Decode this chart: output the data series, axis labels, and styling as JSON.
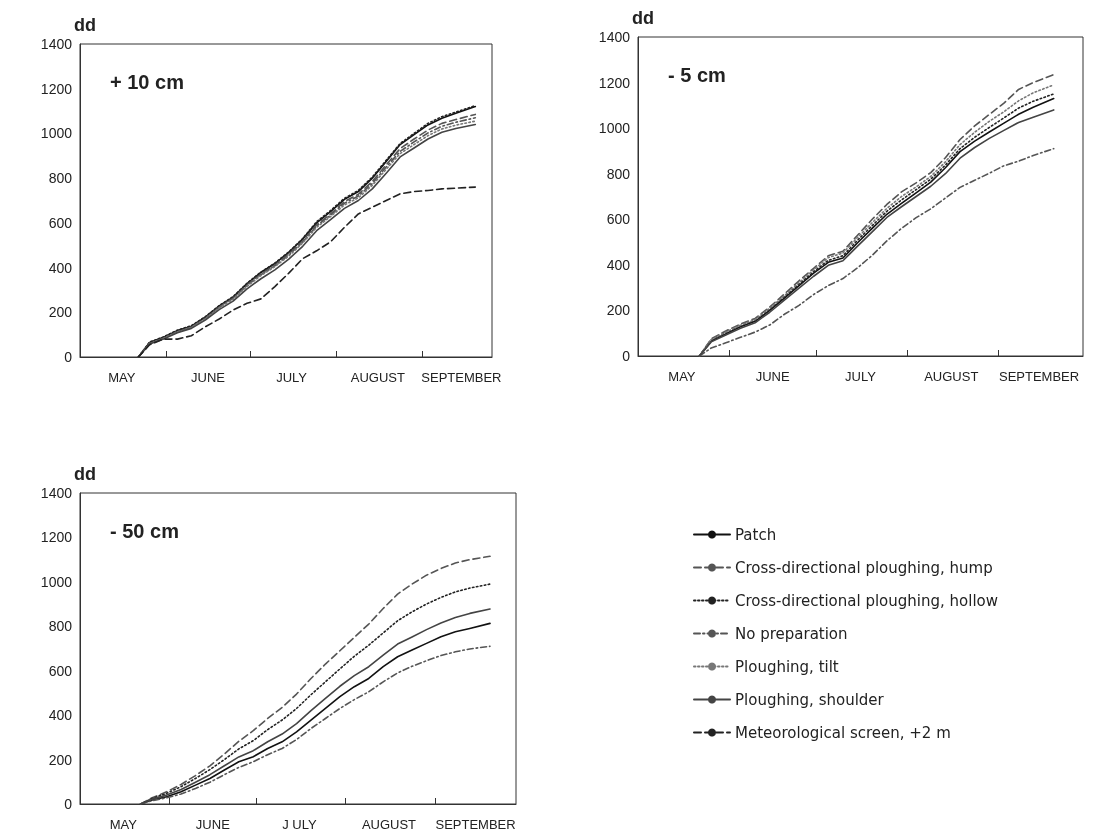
{
  "chart_data": [
    {
      "type": "line",
      "ylabel": "dd",
      "annotations": [
        "+ 10 cm"
      ],
      "xlim": [
        "--05-01",
        "--09-26"
      ],
      "ylim": [
        0,
        1400
      ],
      "yticks": [
        0,
        200,
        400,
        600,
        800,
        1000,
        1200,
        1400
      ],
      "xticks": [
        {
          "value": "--05-16",
          "label": "MAY"
        },
        {
          "value": "--06-01",
          "label": null
        },
        {
          "value": "--06-16",
          "label": "JUNE"
        },
        {
          "value": "--07-01",
          "label": null
        },
        {
          "value": "--07-16",
          "label": "JULY"
        },
        {
          "value": "--08-01",
          "label": null
        },
        {
          "value": "--08-16",
          "label": "AUGUST"
        },
        {
          "value": "--09-01",
          "label": null
        },
        {
          "value": "--09-15",
          "label": "SEPTEMBER"
        }
      ],
      "x": [
        "--05-22",
        "--05-26",
        "--05-31",
        "--06-05",
        "--06-10",
        "--06-15",
        "--06-20",
        "--06-25",
        "--06-30",
        "--07-05",
        "--07-10",
        "--07-15",
        "--07-20",
        "--07-25",
        "--07-30",
        "--08-04",
        "--08-09",
        "--08-14",
        "--08-19",
        "--08-24",
        "--08-29",
        "--09-03",
        "--09-08",
        "--09-13",
        "--09-20"
      ],
      "marker": "none",
      "legend": "bottom right",
      "series": [
        {
          "name": "Patch",
          "color": "#111111",
          "line_style": "solid",
          "values": [
            0,
            65,
            88,
            118,
            138,
            178,
            228,
            268,
            328,
            378,
            418,
            468,
            528,
            600,
            650,
            705,
            740,
            800,
            875,
            950,
            995,
            1038,
            1068,
            1090,
            1120
          ]
        },
        {
          "name": "Cross-directional ploughing, hump",
          "color": "#555555",
          "line_style": "dashed",
          "values": [
            0,
            62,
            85,
            115,
            135,
            175,
            225,
            265,
            325,
            372,
            412,
            462,
            520,
            592,
            640,
            695,
            728,
            785,
            860,
            932,
            975,
            1015,
            1045,
            1062,
            1085
          ]
        },
        {
          "name": "Cross-directional ploughing, hollow",
          "color": "#222222",
          "line_style": "dotted",
          "values": [
            0,
            67,
            90,
            120,
            140,
            180,
            230,
            270,
            330,
            380,
            420,
            470,
            530,
            605,
            655,
            710,
            745,
            805,
            880,
            955,
            1000,
            1045,
            1075,
            1095,
            1125
          ]
        },
        {
          "name": "No preparation",
          "color": "#555555",
          "line_style": "dashdot",
          "values": [
            0,
            60,
            84,
            113,
            133,
            172,
            222,
            262,
            320,
            368,
            408,
            456,
            515,
            586,
            634,
            688,
            720,
            776,
            850,
            920,
            962,
            1002,
            1032,
            1050,
            1070
          ]
        },
        {
          "name": "Ploughing, tilt",
          "color": "#777777",
          "line_style": "dotted",
          "values": [
            0,
            60,
            83,
            112,
            132,
            170,
            220,
            258,
            316,
            364,
            404,
            452,
            510,
            580,
            628,
            680,
            712,
            768,
            840,
            910,
            950,
            990,
            1020,
            1037,
            1055
          ]
        },
        {
          "name": "Ploughing, shoulder",
          "color": "#444444",
          "line_style": "solid",
          "values": [
            0,
            58,
            80,
            108,
            128,
            165,
            212,
            250,
            305,
            350,
            390,
            438,
            495,
            565,
            615,
            665,
            700,
            752,
            822,
            895,
            935,
            975,
            1005,
            1022,
            1040
          ]
        },
        {
          "name": "Meteorological screen, +2 m",
          "color": "#222222",
          "line_style": "dashed",
          "values": [
            0,
            55,
            80,
            80,
            95,
            135,
            170,
            210,
            240,
            260,
            315,
            375,
            440,
            475,
            515,
            580,
            640,
            670,
            700,
            730,
            740,
            745,
            752,
            755,
            760
          ]
        }
      ]
    },
    {
      "type": "line",
      "ylabel": "dd",
      "annotations": [
        "- 5 cm"
      ],
      "xlim": [
        "--05-01",
        "--09-30"
      ],
      "ylim": [
        0,
        1400
      ],
      "yticks": [
        0,
        200,
        400,
        600,
        800,
        1000,
        1200,
        1400
      ],
      "xticks": [
        {
          "value": "--05-16",
          "label": "MAY"
        },
        {
          "value": "--06-01",
          "label": null
        },
        {
          "value": "--06-16",
          "label": "JUNE"
        },
        {
          "value": "--07-01",
          "label": null
        },
        {
          "value": "--07-16",
          "label": "JULY"
        },
        {
          "value": "--08-01",
          "label": null
        },
        {
          "value": "--08-16",
          "label": "AUGUST"
        },
        {
          "value": "--09-01",
          "label": null
        },
        {
          "value": "--09-15",
          "label": "SEPTEMBER"
        }
      ],
      "x": [
        "--05-22",
        "--05-26",
        "--05-31",
        "--06-05",
        "--06-10",
        "--06-15",
        "--06-20",
        "--06-25",
        "--06-30",
        "--07-05",
        "--07-10",
        "--07-15",
        "--07-20",
        "--07-25",
        "--07-30",
        "--08-04",
        "--08-09",
        "--08-14",
        "--08-19",
        "--08-24",
        "--08-29",
        "--09-03",
        "--09-08",
        "--09-13",
        "--09-20"
      ],
      "marker": "none",
      "series": [
        {
          "color": "#111111",
          "line_style": "solid",
          "values": [
            0,
            65,
            97,
            128,
            152,
            200,
            254,
            309,
            364,
            411,
            430,
            497,
            560,
            622,
            670,
            716,
            763,
            826,
            897,
            943,
            983,
            1022,
            1061,
            1092,
            1130
          ]
        },
        {
          "color": "#555555",
          "line_style": "dashed",
          "values": [
            0,
            75,
            110,
            140,
            165,
            215,
            272,
            330,
            385,
            440,
            460,
            530,
            600,
            665,
            720,
            760,
            805,
            870,
            950,
            1010,
            1060,
            1110,
            1170,
            1200,
            1235
          ]
        },
        {
          "color": "#222222",
          "line_style": "dotted",
          "values": [
            0,
            70,
            102,
            132,
            157,
            205,
            260,
            315,
            370,
            420,
            440,
            508,
            572,
            635,
            685,
            730,
            776,
            838,
            910,
            960,
            1003,
            1045,
            1088,
            1118,
            1150
          ]
        },
        {
          "color": "#555555",
          "line_style": "dashdot",
          "values": [
            0,
            35,
            58,
            82,
            105,
            136,
            183,
            222,
            270,
            309,
            340,
            387,
            442,
            505,
            560,
            607,
            646,
            693,
            740,
            771,
            802,
            835,
            855,
            880,
            910
          ]
        },
        {
          "color": "#777777",
          "line_style": "dotted",
          "values": [
            0,
            72,
            105,
            135,
            160,
            210,
            265,
            322,
            378,
            432,
            452,
            520,
            585,
            648,
            700,
            742,
            788,
            852,
            928,
            982,
            1030,
            1072,
            1120,
            1155,
            1190
          ]
        },
        {
          "color": "#444444",
          "line_style": "solid",
          "values": [
            0,
            62,
            92,
            122,
            146,
            192,
            245,
            298,
            350,
            398,
            418,
            482,
            545,
            608,
            655,
            700,
            745,
            800,
            868,
            915,
            955,
            990,
            1025,
            1048,
            1080
          ]
        }
      ]
    },
    {
      "type": "line",
      "ylabel": "dd",
      "annotations": [
        "- 50 cm"
      ],
      "xlim": [
        "--05-01",
        "--09-29"
      ],
      "ylim": [
        0,
        1400
      ],
      "yticks": [
        0,
        200,
        400,
        600,
        800,
        1000,
        1200,
        1400
      ],
      "xticks": [
        {
          "value": "--05-16",
          "label": "MAY"
        },
        {
          "value": "--06-01",
          "label": null
        },
        {
          "value": "--06-16",
          "label": "JUNE"
        },
        {
          "value": "--07-01",
          "label": null
        },
        {
          "value": "--07-16",
          "label": "J ULY"
        },
        {
          "value": "--08-01",
          "label": null
        },
        {
          "value": "--08-16",
          "label": "AUGUST"
        },
        {
          "value": "--09-01",
          "label": null
        },
        {
          "value": "--09-15",
          "label": "SEPTEMBER"
        }
      ],
      "x": [
        "--05-22",
        "--05-26",
        "--05-31",
        "--06-05",
        "--06-10",
        "--06-15",
        "--06-20",
        "--06-25",
        "--06-30",
        "--07-05",
        "--07-10",
        "--07-15",
        "--07-20",
        "--07-25",
        "--07-30",
        "--08-04",
        "--08-09",
        "--08-14",
        "--08-19",
        "--08-24",
        "--08-29",
        "--09-03",
        "--09-08",
        "--09-13",
        "--09-20"
      ],
      "marker": "none",
      "series": [
        {
          "color": "#111111",
          "line_style": "solid",
          "values": [
            0,
            18,
            33,
            55,
            85,
            115,
            153,
            190,
            213,
            250,
            280,
            325,
            378,
            430,
            483,
            528,
            565,
            618,
            663,
            693,
            723,
            753,
            775,
            790,
            813
          ]
        },
        {
          "color": "#555555",
          "line_style": "dashed",
          "values": [
            0,
            28,
            55,
            88,
            128,
            172,
            225,
            282,
            330,
            385,
            435,
            495,
            565,
            630,
            690,
            750,
            810,
            880,
            945,
            990,
            1030,
            1060,
            1085,
            1100,
            1115
          ]
        },
        {
          "color": "#222222",
          "line_style": "dotted",
          "values": [
            0,
            25,
            48,
            78,
            115,
            155,
            200,
            248,
            285,
            335,
            378,
            430,
            492,
            550,
            608,
            665,
            715,
            770,
            825,
            865,
            900,
            930,
            955,
            972,
            990
          ]
        },
        {
          "color": "#555555",
          "line_style": "dashdot",
          "values": [
            0,
            15,
            28,
            45,
            70,
            98,
            132,
            165,
            190,
            222,
            250,
            290,
            340,
            385,
            430,
            470,
            505,
            550,
            590,
            620,
            645,
            668,
            685,
            698,
            710
          ]
        },
        {
          "color": "#444444",
          "line_style": "solid",
          "values": [
            0,
            22,
            40,
            65,
            98,
            132,
            172,
            212,
            240,
            280,
            315,
            362,
            420,
            475,
            530,
            578,
            618,
            670,
            720,
            752,
            785,
            815,
            840,
            858,
            878
          ]
        }
      ]
    }
  ]
}
